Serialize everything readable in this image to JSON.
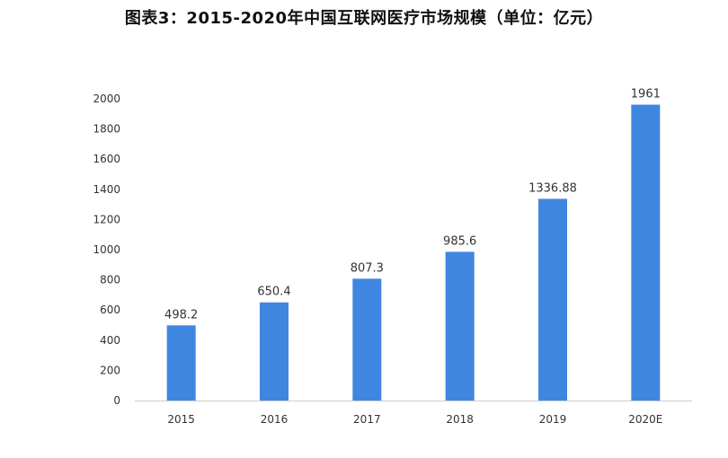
{
  "chart_data": {
    "type": "bar",
    "title": "图表3：2015-2020年中国互联网医疗市场规模（单位：亿元）",
    "categories": [
      "2015",
      "2016",
      "2017",
      "2018",
      "2019",
      "2020E"
    ],
    "values": [
      498.2,
      650.4,
      807.3,
      985.6,
      1336.88,
      1961
    ],
    "data_labels": [
      "498.2",
      "650.4",
      "807.3",
      "985.6",
      "1336.88",
      "1961"
    ],
    "ylim": [
      0,
      2000
    ],
    "yticks": [
      0,
      200,
      400,
      600,
      800,
      1000,
      1200,
      1400,
      1600,
      1800,
      2000
    ],
    "xlabel": "",
    "ylabel": "",
    "grid": false,
    "legend": "none",
    "colors": {
      "bar": "#3f86e0",
      "axis": "#cccccc"
    }
  }
}
